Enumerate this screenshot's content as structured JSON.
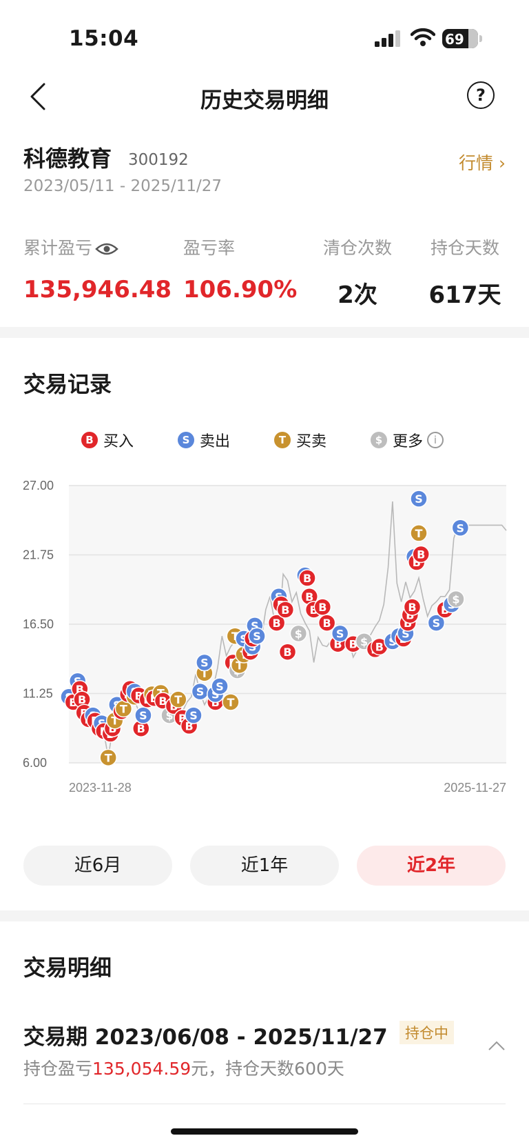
{
  "status": {
    "time": "15:04",
    "battery": "69"
  },
  "nav": {
    "title": "历史交易明细"
  },
  "stock": {
    "name": "科德教育",
    "code": "300192",
    "range": "2023/05/11 - 2025/11/27",
    "quote_link": "行情 ›"
  },
  "stats": {
    "pnl_label": "累计盈亏",
    "pnl_value": "135,946.48",
    "rate_label": "盈亏率",
    "rate_value": "106.90%",
    "clear_label": "清仓次数",
    "clear_value": "2次",
    "days_label": "持仓天数",
    "days_value": "617天"
  },
  "records": {
    "title": "交易记录",
    "legend": [
      {
        "glyph": "B",
        "label": "买入",
        "color": "#e1262a"
      },
      {
        "glyph": "S",
        "label": "卖出",
        "color": "#5a87db"
      },
      {
        "glyph": "T",
        "label": "买卖",
        "color": "#c8922f"
      },
      {
        "glyph": "$",
        "label": "更多",
        "color": "#bdbdbd"
      }
    ]
  },
  "chart_data": {
    "type": "line",
    "y_ticks": [
      "27.00",
      "21.75",
      "16.50",
      "11.25",
      "6.00"
    ],
    "ylim": [
      6.0,
      27.0
    ],
    "x_start": "2023-11-28",
    "x_end": "2025-11-27",
    "series": [
      {
        "x": [
          0.0,
          0.01,
          0.02,
          0.03,
          0.04,
          0.05,
          0.06,
          0.07,
          0.08,
          0.09,
          0.1,
          0.11,
          0.12,
          0.13,
          0.14,
          0.15,
          0.16,
          0.17,
          0.18,
          0.19,
          0.2,
          0.21,
          0.22,
          0.23,
          0.24,
          0.25,
          0.26,
          0.27,
          0.28,
          0.29,
          0.3,
          0.31,
          0.32,
          0.33,
          0.34,
          0.35,
          0.36,
          0.37,
          0.38,
          0.39,
          0.4,
          0.41,
          0.42,
          0.43,
          0.44,
          0.45,
          0.46,
          0.47,
          0.48,
          0.49,
          0.5,
          0.51,
          0.52,
          0.53,
          0.54,
          0.55,
          0.56,
          0.57,
          0.58,
          0.59,
          0.6,
          0.61,
          0.62,
          0.63,
          0.64,
          0.65,
          0.66,
          0.67,
          0.68,
          0.69,
          0.7,
          0.71,
          0.72,
          0.73,
          0.74,
          0.75,
          0.76,
          0.77,
          0.78,
          0.79,
          0.8,
          0.81,
          0.82,
          0.83,
          0.84,
          0.85,
          0.86,
          0.87,
          0.88,
          0.89,
          0.9,
          0.91,
          0.92,
          0.93,
          0.94,
          0.95,
          0.96,
          0.97,
          0.98,
          0.99,
          1.0
        ],
        "y": [
          11.0,
          10.2,
          11.6,
          10.4,
          9.6,
          9.2,
          9.4,
          9.0,
          8.3,
          6.4,
          8.6,
          10.0,
          10.5,
          11.4,
          11.6,
          10.7,
          9.9,
          10.3,
          10.6,
          11.2,
          11.0,
          10.6,
          10.2,
          9.9,
          9.6,
          9.2,
          9.9,
          10.6,
          11.0,
          12.7,
          11.3,
          10.4,
          11.0,
          11.7,
          13.2,
          15.6,
          14.1,
          14.8,
          15.2,
          15.9,
          15.6,
          14.2,
          15.6,
          16.3,
          15.3,
          17.6,
          18.6,
          16.8,
          16.0,
          20.3,
          19.8,
          18.2,
          18.9,
          17.3,
          16.6,
          16.0,
          13.6,
          15.5,
          14.9,
          14.8,
          15.3,
          14.6,
          16.0,
          14.7,
          15.3,
          14.0,
          14.6,
          15.0,
          15.4,
          15.7,
          16.3,
          16.8,
          18.0,
          20.8,
          25.8,
          19.6,
          18.2,
          19.7,
          18.5,
          19.0,
          20.0,
          18.4,
          17.1,
          17.9,
          18.2,
          18.6,
          18.6,
          19.1,
          23.0,
          24.0,
          24.0,
          24.0,
          24.0,
          24.0,
          24.0,
          24.0,
          24.0,
          24.0,
          24.0,
          24.0,
          23.6
        ]
      }
    ],
    "markers": [
      {
        "t": "S",
        "x": 0.0,
        "y": 11.0
      },
      {
        "t": "B",
        "x": 0.01,
        "y": 10.6
      },
      {
        "t": "S",
        "x": 0.02,
        "y": 12.2
      },
      {
        "t": "B",
        "x": 0.025,
        "y": 11.6
      },
      {
        "t": "B",
        "x": 0.03,
        "y": 10.8
      },
      {
        "t": "B",
        "x": 0.035,
        "y": 9.8
      },
      {
        "t": "B",
        "x": 0.045,
        "y": 9.3
      },
      {
        "t": "S",
        "x": 0.055,
        "y": 9.6
      },
      {
        "t": "B",
        "x": 0.06,
        "y": 9.2
      },
      {
        "t": "B",
        "x": 0.07,
        "y": 8.6
      },
      {
        "t": "S",
        "x": 0.075,
        "y": 9.0
      },
      {
        "t": "B",
        "x": 0.08,
        "y": 8.4
      },
      {
        "t": "T",
        "x": 0.09,
        "y": 6.4
      },
      {
        "t": "B",
        "x": 0.095,
        "y": 8.2
      },
      {
        "t": "B",
        "x": 0.1,
        "y": 8.6
      },
      {
        "t": "T",
        "x": 0.105,
        "y": 9.2
      },
      {
        "t": "S",
        "x": 0.11,
        "y": 10.4
      },
      {
        "t": "B",
        "x": 0.12,
        "y": 9.9
      },
      {
        "t": "T",
        "x": 0.125,
        "y": 10.1
      },
      {
        "t": "B",
        "x": 0.135,
        "y": 11.2
      },
      {
        "t": "B",
        "x": 0.14,
        "y": 11.6
      },
      {
        "t": "T",
        "x": 0.15,
        "y": 11.0
      },
      {
        "t": "S",
        "x": 0.15,
        "y": 11.4
      },
      {
        "t": "B",
        "x": 0.16,
        "y": 11.1
      },
      {
        "t": "B",
        "x": 0.165,
        "y": 8.6
      },
      {
        "t": "S",
        "x": 0.17,
        "y": 9.6
      },
      {
        "t": "B",
        "x": 0.18,
        "y": 10.8
      },
      {
        "t": "T",
        "x": 0.19,
        "y": 11.2
      },
      {
        "t": "B",
        "x": 0.195,
        "y": 10.9
      },
      {
        "t": "T",
        "x": 0.21,
        "y": 11.3
      },
      {
        "t": "B",
        "x": 0.215,
        "y": 10.7
      },
      {
        "t": "$",
        "x": 0.23,
        "y": 9.6
      },
      {
        "t": "B",
        "x": 0.24,
        "y": 10.3
      },
      {
        "t": "T",
        "x": 0.25,
        "y": 10.8
      },
      {
        "t": "B",
        "x": 0.26,
        "y": 9.4
      },
      {
        "t": "B",
        "x": 0.275,
        "y": 8.8
      },
      {
        "t": "S",
        "x": 0.285,
        "y": 9.6
      },
      {
        "t": "S",
        "x": 0.3,
        "y": 11.4
      },
      {
        "t": "T",
        "x": 0.31,
        "y": 12.8
      },
      {
        "t": "S",
        "x": 0.31,
        "y": 13.6
      },
      {
        "t": "B",
        "x": 0.335,
        "y": 10.6
      },
      {
        "t": "S",
        "x": 0.335,
        "y": 11.2
      },
      {
        "t": "S",
        "x": 0.345,
        "y": 11.8
      },
      {
        "t": "T",
        "x": 0.37,
        "y": 10.6
      },
      {
        "t": "B",
        "x": 0.375,
        "y": 13.6
      },
      {
        "t": "T",
        "x": 0.38,
        "y": 15.6
      },
      {
        "t": "$",
        "x": 0.385,
        "y": 13.0
      },
      {
        "t": "T",
        "x": 0.39,
        "y": 13.4
      },
      {
        "t": "T",
        "x": 0.4,
        "y": 14.2
      },
      {
        "t": "S",
        "x": 0.4,
        "y": 15.4
      },
      {
        "t": "B",
        "x": 0.415,
        "y": 14.4
      },
      {
        "t": "S",
        "x": 0.42,
        "y": 14.8
      },
      {
        "t": "B",
        "x": 0.42,
        "y": 15.4
      },
      {
        "t": "S",
        "x": 0.425,
        "y": 16.4
      },
      {
        "t": "S",
        "x": 0.43,
        "y": 15.6
      },
      {
        "t": "B",
        "x": 0.475,
        "y": 16.6
      },
      {
        "t": "S",
        "x": 0.48,
        "y": 18.6
      },
      {
        "t": "B",
        "x": 0.485,
        "y": 18.0
      },
      {
        "t": "B",
        "x": 0.495,
        "y": 17.6
      },
      {
        "t": "B",
        "x": 0.5,
        "y": 14.4
      },
      {
        "t": "$",
        "x": 0.525,
        "y": 15.8
      },
      {
        "t": "S",
        "x": 0.54,
        "y": 20.2
      },
      {
        "t": "B",
        "x": 0.545,
        "y": 20.0
      },
      {
        "t": "B",
        "x": 0.55,
        "y": 18.6
      },
      {
        "t": "B",
        "x": 0.56,
        "y": 17.6
      },
      {
        "t": "B",
        "x": 0.58,
        "y": 17.8
      },
      {
        "t": "B",
        "x": 0.59,
        "y": 16.6
      },
      {
        "t": "B",
        "x": 0.615,
        "y": 15.0
      },
      {
        "t": "S",
        "x": 0.62,
        "y": 15.8
      },
      {
        "t": "B",
        "x": 0.65,
        "y": 15.0
      },
      {
        "t": "$",
        "x": 0.675,
        "y": 15.2
      },
      {
        "t": "B",
        "x": 0.7,
        "y": 14.6
      },
      {
        "t": "B",
        "x": 0.71,
        "y": 14.8
      },
      {
        "t": "S",
        "x": 0.74,
        "y": 15.2
      },
      {
        "t": "S",
        "x": 0.755,
        "y": 15.6
      },
      {
        "t": "B",
        "x": 0.765,
        "y": 15.4
      },
      {
        "t": "S",
        "x": 0.77,
        "y": 15.8
      },
      {
        "t": "B",
        "x": 0.775,
        "y": 16.6
      },
      {
        "t": "B",
        "x": 0.78,
        "y": 17.2
      },
      {
        "t": "B",
        "x": 0.785,
        "y": 17.8
      },
      {
        "t": "S",
        "x": 0.79,
        "y": 21.6
      },
      {
        "t": "B",
        "x": 0.795,
        "y": 21.2
      },
      {
        "t": "T",
        "x": 0.8,
        "y": 23.4
      },
      {
        "t": "S",
        "x": 0.8,
        "y": 26.0
      },
      {
        "t": "B",
        "x": 0.805,
        "y": 21.8
      },
      {
        "t": "S",
        "x": 0.84,
        "y": 16.6
      },
      {
        "t": "B",
        "x": 0.86,
        "y": 17.6
      },
      {
        "t": "S",
        "x": 0.875,
        "y": 18.0
      },
      {
        "t": "$",
        "x": 0.885,
        "y": 18.4
      },
      {
        "t": "S",
        "x": 0.895,
        "y": 23.8
      }
    ]
  },
  "periods": [
    "近6月",
    "近1年",
    "近2年"
  ],
  "details": {
    "title": "交易明细",
    "period": "交易期 2023/06/08 - 2025/11/27",
    "tag": "持仓中",
    "pnl_prefix": "持仓盈亏",
    "pnl_value": "135,054.59",
    "pnl_suffix": "元，持仓天数600天"
  }
}
